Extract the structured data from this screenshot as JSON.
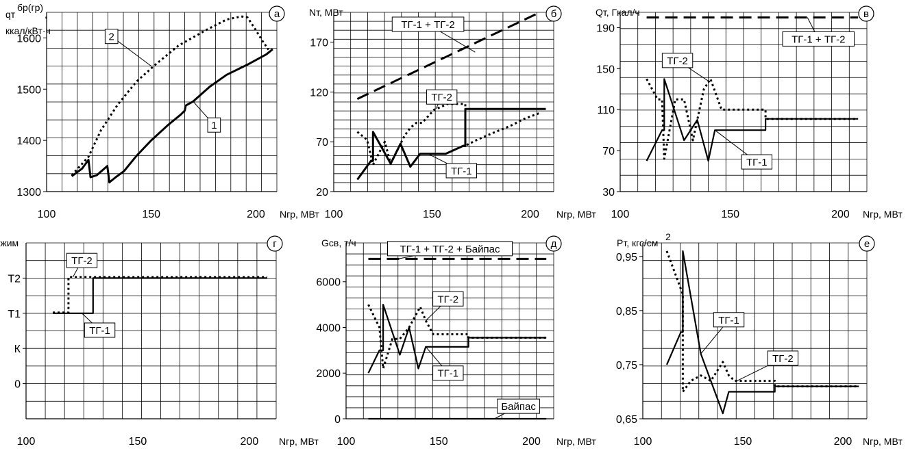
{
  "chart_data": [
    {
      "id": "a",
      "type": "line",
      "badge": "а",
      "ylabel": "qт",
      "ylabel_sup": "бр(гр)",
      "ylabel_comma": ",",
      "ylabel2": "ккал/кВт·ч",
      "xlabel": "Nгр, МВт",
      "xlim": [
        100,
        210
      ],
      "ylim": [
        1300,
        1650
      ],
      "xticks": [
        100,
        150,
        200
      ],
      "yticks": [
        1300,
        1400,
        1500,
        1600
      ],
      "series": [
        {
          "name": "1",
          "style": "solid",
          "points": [
            [
              112,
              1330
            ],
            [
              117,
              1345
            ],
            [
              120,
              1362
            ],
            [
              121,
              1328
            ],
            [
              124,
              1332
            ],
            [
              129,
              1350
            ],
            [
              130,
              1318
            ],
            [
              133,
              1328
            ],
            [
              137,
              1340
            ],
            [
              143,
              1370
            ],
            [
              150,
              1400
            ],
            [
              158,
              1430
            ],
            [
              164,
              1450
            ],
            [
              166,
              1458
            ],
            [
              166.5,
              1468
            ],
            [
              170,
              1476
            ],
            [
              178,
              1505
            ],
            [
              186,
              1528
            ],
            [
              196,
              1548
            ],
            [
              205,
              1568
            ],
            [
              208,
              1578
            ]
          ]
        },
        {
          "name": "2",
          "style": "dotted",
          "points": [
            [
              112,
              1332
            ],
            [
              120,
              1368
            ],
            [
              126,
              1420
            ],
            [
              134,
              1470
            ],
            [
              143,
              1515
            ],
            [
              152,
              1548
            ],
            [
              163,
              1585
            ],
            [
              176,
              1615
            ],
            [
              186,
              1636
            ],
            [
              193,
              1642
            ],
            [
              196,
              1640
            ],
            [
              200,
              1615
            ],
            [
              203,
              1595
            ],
            [
              206,
              1577
            ]
          ]
        }
      ],
      "labels": [
        {
          "text": "1",
          "target": [
            170,
            1476
          ],
          "box": [
            180,
            1430
          ]
        },
        {
          "text": "2",
          "target": [
            150,
            1545
          ],
          "box": [
            131,
            1603
          ]
        }
      ]
    },
    {
      "id": "b",
      "type": "line",
      "badge": "б",
      "ylabel": "Nт, МВт",
      "xlabel": "Nгр, МВт",
      "xlim": [
        100,
        212
      ],
      "ylim": [
        20,
        200
      ],
      "xticks": [
        100,
        150,
        200
      ],
      "yticks": [
        20,
        70,
        120,
        170
      ],
      "series": [
        {
          "name": "ТГ-1 + ТГ-2",
          "style": "dashed",
          "points": [
            [
              112,
              113
            ],
            [
              205,
              200
            ]
          ]
        },
        {
          "name": "ТГ-1",
          "style": "solid",
          "points": [
            [
              112,
              32
            ],
            [
              119,
              51
            ],
            [
              120,
              51
            ],
            [
              120,
              80
            ],
            [
              129,
              48
            ],
            [
              134,
              68
            ],
            [
              139,
              45
            ],
            [
              144,
              58
            ],
            [
              157,
              58
            ],
            [
              166,
              66
            ],
            [
              167,
              66
            ],
            [
              167,
              103
            ],
            [
              168,
              103
            ],
            [
              180,
              103
            ],
            [
              208,
              103
            ]
          ]
        },
        {
          "name": "ТГ-2",
          "style": "dotted",
          "points": [
            [
              112,
              80
            ],
            [
              117,
              72
            ],
            [
              120,
              47
            ],
            [
              126,
              70
            ],
            [
              129,
              48
            ],
            [
              136,
              76
            ],
            [
              139,
              84
            ],
            [
              142,
              89
            ],
            [
              145,
              89
            ],
            [
              151,
              102
            ],
            [
              158,
              108
            ],
            [
              162,
              108
            ],
            [
              166,
              108
            ],
            [
              167,
              108
            ],
            [
              167,
              66
            ],
            [
              173,
              72
            ],
            [
              180,
              78
            ],
            [
              190,
              86
            ],
            [
              197,
              93
            ],
            [
              205,
              99
            ]
          ]
        }
      ],
      "labels": [
        {
          "text": "ТГ-1 + ТГ-2",
          "target": [
            172,
            160
          ],
          "box": [
            148,
            188
          ]
        },
        {
          "text": "ТГ-2",
          "target": [
            152,
            103
          ],
          "box": [
            155,
            115
          ]
        },
        {
          "text": "ТГ-1",
          "target": [
            148,
            58
          ],
          "box": [
            165,
            41
          ]
        }
      ]
    },
    {
      "id": "c",
      "type": "line",
      "badge": "в",
      "ylabel": "Qт, Гкал/ч",
      "xlabel": "Nгр, МВт",
      "xlim": [
        100,
        212
      ],
      "ylim": [
        30,
        205
      ],
      "xticks": [
        100,
        150,
        200
      ],
      "yticks": [
        30,
        70,
        110,
        150,
        190
      ],
      "series": [
        {
          "name": "ТГ-1 + ТГ-2",
          "style": "dashed",
          "points": [
            [
              112,
              200
            ],
            [
              208,
              200
            ]
          ]
        },
        {
          "name": "ТГ-1",
          "style": "solid",
          "points": [
            [
              112,
              60
            ],
            [
              119,
              90
            ],
            [
              120,
              90
            ],
            [
              120,
              140
            ],
            [
              129,
              80
            ],
            [
              135,
              100
            ],
            [
              140,
              60
            ],
            [
              143,
              90
            ],
            [
              166,
              90
            ],
            [
              166,
              101
            ],
            [
              208,
              101
            ]
          ]
        },
        {
          "name": "ТГ-2",
          "style": "dotted",
          "points": [
            [
              112,
              140
            ],
            [
              117,
              120
            ],
            [
              119,
              120
            ],
            [
              120,
              62
            ],
            [
              125,
              120
            ],
            [
              129,
              120
            ],
            [
              133,
              80
            ],
            [
              138,
              130
            ],
            [
              141,
              140
            ],
            [
              146,
              110
            ],
            [
              152,
              110
            ],
            [
              166,
              110
            ],
            [
              166,
              101
            ],
            [
              208,
              101
            ]
          ]
        }
      ],
      "labels": [
        {
          "text": "ТГ-1 + ТГ-2",
          "target": [
            185,
            200
          ],
          "box": [
            190,
            179
          ]
        },
        {
          "text": "ТГ-2",
          "target": [
            140,
            138
          ],
          "box": [
            126,
            158
          ]
        },
        {
          "text": "ТГ-1",
          "target": [
            143,
            90
          ],
          "box": [
            162,
            59
          ]
        }
      ]
    },
    {
      "id": "d",
      "type": "line",
      "badge": "г",
      "ylabel": "Режим",
      "xlabel": "Nгр, МВт",
      "xlim": [
        100,
        212
      ],
      "ylim": [
        -1,
        4
      ],
      "xticks": [
        100,
        150,
        200
      ],
      "yticks": [
        0,
        1,
        2,
        3
      ],
      "ytick_labels": [
        "0",
        "К",
        "Т1",
        "Т2"
      ],
      "series": [
        {
          "name": "ТГ-1",
          "style": "solid",
          "points": [
            [
              112,
              2
            ],
            [
              130,
              2
            ],
            [
              130,
              3
            ],
            [
              208,
              3
            ]
          ]
        },
        {
          "name": "ТГ-2",
          "style": "dotted",
          "points": [
            [
              112,
              2.02
            ],
            [
              119,
              2.02
            ],
            [
              119,
              3.03
            ],
            [
              208,
              3.03
            ]
          ]
        }
      ],
      "labels": [
        {
          "text": "ТГ-2",
          "target": [
            121,
            3.03
          ],
          "box": [
            125,
            3.5
          ]
        },
        {
          "text": "ТГ-1",
          "target": [
            125,
            2.0
          ],
          "box": [
            133,
            1.52
          ]
        }
      ]
    },
    {
      "id": "e",
      "type": "line",
      "badge": "д",
      "ylabel": "Gсв, т/ч",
      "xlabel": "Nгр, МВт",
      "xlim": [
        100,
        212
      ],
      "ylim": [
        0,
        7700
      ],
      "xticks": [
        100,
        150,
        200
      ],
      "yticks": [
        0,
        2000,
        4000,
        6000
      ],
      "series": [
        {
          "name": "ТГ-1 + ТГ-2 + Байпас",
          "style": "dashed",
          "points": [
            [
              112,
              7000
            ],
            [
              208,
              7000
            ]
          ]
        },
        {
          "name": "ТГ-1",
          "style": "solid",
          "points": [
            [
              112,
              2000
            ],
            [
              118,
              3000
            ],
            [
              120,
              3000
            ],
            [
              120,
              5000
            ],
            [
              129,
              2800
            ],
            [
              134,
              4000
            ],
            [
              139,
              2200
            ],
            [
              143,
              3150
            ],
            [
              166,
              3150
            ],
            [
              166,
              3550
            ],
            [
              208,
              3550
            ]
          ]
        },
        {
          "name": "ТГ-2",
          "style": "dotted",
          "points": [
            [
              112,
              5000
            ],
            [
              118,
              4000
            ],
            [
              120,
              2200
            ],
            [
              125,
              3500
            ],
            [
              129,
              3500
            ],
            [
              134,
              4000
            ],
            [
              140,
              4900
            ],
            [
              143,
              4300
            ],
            [
              147,
              3700
            ],
            [
              166,
              3700
            ],
            [
              166,
              3550
            ],
            [
              208,
              3550
            ]
          ]
        },
        {
          "name": "Байпас",
          "style": "solid",
          "points": [
            [
              112,
              0
            ],
            [
              208,
              0
            ]
          ]
        }
      ],
      "labels": [
        {
          "text": "ТГ-1 + ТГ-2 + Байпас",
          "target": [
            128,
            7000
          ],
          "box": [
            156,
            7450
          ]
        },
        {
          "text": "ТГ-2",
          "target": [
            143,
            4300
          ],
          "box": [
            155,
            5250
          ]
        },
        {
          "text": "ТГ-1",
          "target": [
            143,
            3150
          ],
          "box": [
            155,
            2000
          ]
        },
        {
          "text": "Байпас",
          "target": [
            180,
            0
          ],
          "box": [
            193,
            550
          ]
        }
      ]
    },
    {
      "id": "f",
      "type": "line",
      "badge": "е",
      "ylabel": "Pт, кгс/см",
      "ylabel_sup": "2",
      "xlabel": "Nгр, МВт",
      "xlim": [
        100,
        212
      ],
      "ylim": [
        0.65,
        0.975
      ],
      "xticks": [
        100,
        150,
        200
      ],
      "yticks": [
        0.65,
        0.75,
        0.85,
        0.95
      ],
      "ytick_labels": [
        "0,65",
        "0,75",
        "0,85",
        "0,95"
      ],
      "series": [
        {
          "name": "ТГ-1",
          "style": "solid",
          "points": [
            [
              112,
              0.75
            ],
            [
              119,
              0.81
            ],
            [
              120,
              0.81
            ],
            [
              120,
              0.96
            ],
            [
              129,
              0.77
            ],
            [
              134,
              0.72
            ],
            [
              140,
              0.66
            ],
            [
              143,
              0.7
            ],
            [
              166,
              0.7
            ],
            [
              166,
              0.71
            ],
            [
              208,
              0.71
            ]
          ]
        },
        {
          "name": "ТГ-2",
          "style": "dotted",
          "points": [
            [
              112,
              0.96
            ],
            [
              118,
              0.9
            ],
            [
              120,
              0.88
            ],
            [
              120,
              0.7
            ],
            [
              124,
              0.72
            ],
            [
              129,
              0.73
            ],
            [
              134,
              0.72
            ],
            [
              140,
              0.755
            ],
            [
              143,
              0.73
            ],
            [
              146,
              0.72
            ],
            [
              166,
              0.72
            ],
            [
              166,
              0.71
            ],
            [
              208,
              0.71
            ]
          ]
        }
      ],
      "labels": [
        {
          "text": "ТГ-1",
          "target": [
            129,
            0.77
          ],
          "box": [
            143,
            0.833
          ]
        },
        {
          "text": "ТГ-2",
          "target": [
            147,
            0.72
          ],
          "box": [
            170,
            0.762
          ]
        }
      ]
    }
  ]
}
